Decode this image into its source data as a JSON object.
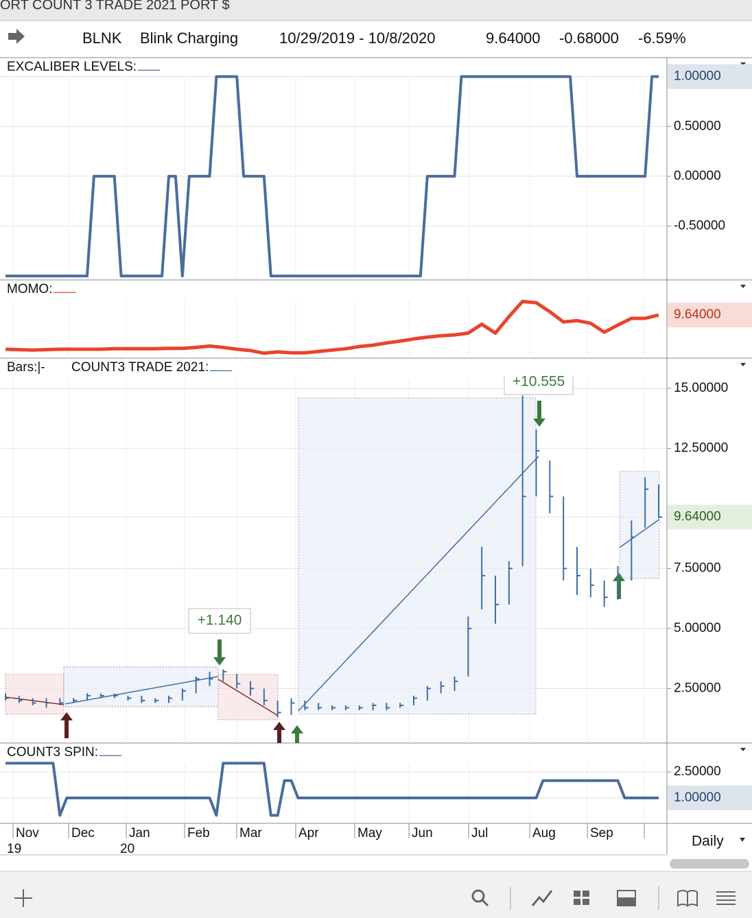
{
  "header": {
    "title": "ORT COUNT 3 TRADE 2021 PORT $",
    "symbol": "BLNK",
    "name": "Blink Charging",
    "range": "10/29/2019 - 10/8/2020",
    "last": "9.64000",
    "change": "-0.68000",
    "change_pct": "-6.59%"
  },
  "chart_data": [
    {
      "type": "line",
      "label": "EXCALIBER LEVELS:",
      "swatch": "___",
      "color": "#4a6d9c",
      "values": [
        -1,
        -1,
        -1,
        -1,
        -1,
        -1,
        -1,
        -1,
        -1,
        -1,
        -1,
        -1,
        -1,
        0,
        0,
        0,
        0,
        -1,
        -1,
        -1,
        -1,
        -1,
        -1,
        -1,
        0,
        0,
        -1,
        0,
        0,
        0,
        0,
        1,
        1,
        1,
        1,
        0,
        0,
        0,
        0,
        -1,
        -1,
        -1,
        -1,
        -1,
        -1,
        -1,
        -1,
        -1,
        -1,
        -1,
        -1,
        -1,
        -1,
        -1,
        -1,
        -1,
        -1,
        -1,
        -1,
        -1,
        -1,
        -1,
        0,
        0,
        0,
        0,
        0,
        1,
        1,
        1,
        1,
        1,
        1,
        1,
        1,
        1,
        1,
        1,
        1,
        1,
        1,
        1,
        1,
        1,
        0,
        0,
        0,
        0,
        0,
        0,
        0,
        0,
        0,
        0,
        0,
        1,
        1
      ],
      "ylim": [
        -1.04,
        1.19
      ],
      "yticks": [
        {
          "value": 0.5,
          "label": "0.50000"
        },
        {
          "value": 0,
          "label": "0.00000"
        },
        {
          "value": -0.5,
          "label": "-0.50000"
        }
      ],
      "badge": {
        "value": 1,
        "label": "1.00000"
      },
      "grid": true
    },
    {
      "type": "line",
      "label": "MOMO:",
      "swatch": "___",
      "color": "#e8452c",
      "values": [
        2.0,
        1.9,
        1.8,
        1.9,
        2.0,
        2.0,
        2.0,
        2.0,
        2.1,
        2.1,
        2.1,
        2.1,
        2.2,
        2.2,
        2.4,
        2.7,
        2.4,
        2.0,
        1.7,
        1.1,
        1.4,
        1.2,
        1.2,
        1.5,
        1.8,
        2.1,
        2.6,
        2.9,
        3.4,
        3.8,
        4.3,
        4.7,
        5.0,
        5.2,
        5.6,
        7.6,
        5.6,
        9.3,
        12.7,
        12.4,
        10.4,
        8.1,
        8.4,
        7.8,
        5.8,
        7.4,
        8.9,
        8.9,
        9.64
      ],
      "ylim": [
        0,
        17.5
      ],
      "badge": {
        "value": 9.64,
        "label": "9.64000"
      }
    },
    {
      "type": "ohlc",
      "bars_label": "Bars:|-",
      "label": "COUNT3 TRADE 2021:",
      "swatch": "___",
      "color": "#3a6fa8",
      "high": [
        2.3,
        2.2,
        2.1,
        2.1,
        2.1,
        2.1,
        2.3,
        2.3,
        2.3,
        2.2,
        2.2,
        2.1,
        2.2,
        2.5,
        3.0,
        3.2,
        3.3,
        3.1,
        2.8,
        2.5,
        2.0,
        2.1,
        2.0,
        1.9,
        1.8,
        1.8,
        1.8,
        1.9,
        1.9,
        1.9,
        2.2,
        2.6,
        2.8,
        3.0,
        5.5,
        8.4,
        7.2,
        7.8,
        14.7,
        13.3,
        12.0,
        10.5,
        8.4,
        7.5,
        7.0,
        7.6,
        9.5,
        11.3,
        11.0
      ],
      "low": [
        2.0,
        1.9,
        1.8,
        1.7,
        1.8,
        1.9,
        2.0,
        2.1,
        2.1,
        2.0,
        1.9,
        1.9,
        1.9,
        2.0,
        2.3,
        2.6,
        2.8,
        2.5,
        2.2,
        1.8,
        1.3,
        1.4,
        1.6,
        1.6,
        1.6,
        1.6,
        1.6,
        1.6,
        1.6,
        1.7,
        1.8,
        2.0,
        2.3,
        2.4,
        3.0,
        5.8,
        5.2,
        6.0,
        7.6,
        10.5,
        9.8,
        7.0,
        6.4,
        6.3,
        5.9,
        6.2,
        7.0,
        9.2,
        9.6
      ],
      "close": [
        2.1,
        2.0,
        1.9,
        1.9,
        1.9,
        2.0,
        2.2,
        2.2,
        2.2,
        2.1,
        2.0,
        2.0,
        2.1,
        2.4,
        2.9,
        2.9,
        3.2,
        2.7,
        2.5,
        2.0,
        1.5,
        1.9,
        1.7,
        1.7,
        1.7,
        1.7,
        1.7,
        1.8,
        1.7,
        1.8,
        2.1,
        2.5,
        2.6,
        2.8,
        5.0,
        7.2,
        6.0,
        7.5,
        10.5,
        12.4,
        10.5,
        7.5,
        7.2,
        6.8,
        6.3,
        7.2,
        8.8,
        10.8,
        9.64
      ],
      "ylim": [
        0.23,
        16.26
      ],
      "yticks": [
        {
          "value": 15,
          "label": "15.00000"
        },
        {
          "value": 12.5,
          "label": "12.50000"
        },
        {
          "value": 7.5,
          "label": "7.50000"
        },
        {
          "value": 5,
          "label": "5.00000"
        },
        {
          "value": 2.5,
          "label": "2.50000"
        }
      ],
      "badge": {
        "value": 9.64,
        "label": "9.64000"
      },
      "annotations": [
        "+1.140",
        "+10.555"
      ],
      "grid": true
    },
    {
      "type": "line",
      "label": "COUNT3 SPIN:",
      "swatch": "___",
      "color": "#4a6d9c",
      "values": [
        3,
        3,
        3,
        3,
        3,
        3,
        3,
        3,
        0,
        1,
        1,
        1,
        1,
        1,
        1,
        1,
        1,
        1,
        1,
        1,
        1,
        1,
        1,
        1,
        1,
        1,
        1,
        1,
        1,
        1,
        1,
        0,
        3,
        3,
        3,
        3,
        3,
        3,
        3,
        0,
        0,
        2,
        2,
        1,
        1,
        1,
        1,
        1,
        1,
        1,
        1,
        1,
        1,
        1,
        1,
        1,
        1,
        1,
        1,
        1,
        1,
        1,
        1,
        1,
        1,
        1,
        1,
        1,
        1,
        1,
        1,
        1,
        1,
        1,
        1,
        1,
        1,
        1,
        1,
        2,
        2,
        2,
        2,
        2,
        2,
        2,
        2,
        2,
        2,
        2,
        2,
        1,
        1,
        1,
        1,
        1,
        1
      ],
      "ylim": [
        -0.46,
        4.16
      ],
      "yticks": [
        {
          "value": 2.5,
          "label": "2.50000"
        }
      ],
      "badge": {
        "value": 1,
        "label": "1.00000"
      },
      "grid": true
    }
  ],
  "time_axis": {
    "months": [
      "Nov",
      "Dec",
      "Jan",
      "Feb",
      "Mar",
      "Apr",
      "May",
      "Jun",
      "Jul",
      "Aug",
      "Sep"
    ],
    "years": [
      "19",
      "20"
    ]
  },
  "interval": "Daily"
}
